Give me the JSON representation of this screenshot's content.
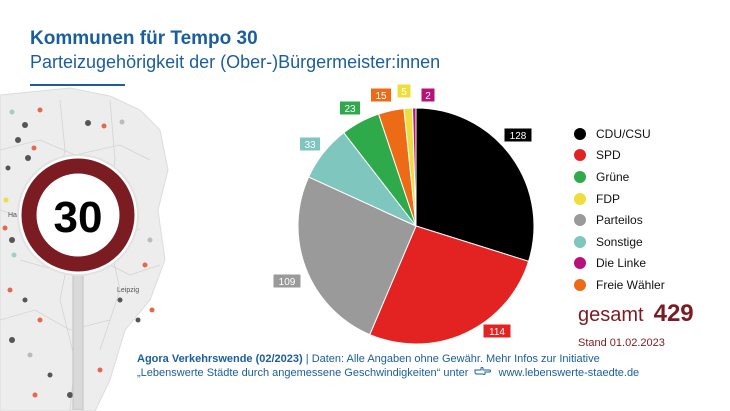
{
  "header": {
    "title": "Kommunen für Tempo 30",
    "subtitle": "Parteizugehörigkeit der (Ober-)Bürgermeister:innen"
  },
  "sign": {
    "number": "30"
  },
  "map": {
    "cities": [
      "Har",
      "Leipzig"
    ]
  },
  "colors": {
    "brand_blue": "#1a5e9e",
    "accent_dark_red": "#7b1c23",
    "sign_ring": "#7b1c23"
  },
  "chart_data": {
    "type": "pie",
    "title": "",
    "slices": [
      {
        "label": "CDU/CSU",
        "value": 128,
        "color": "#000000",
        "label_text": "#ffffff"
      },
      {
        "label": "SPD",
        "value": 114,
        "color": "#e32322",
        "label_text": "#ffffff"
      },
      {
        "label": "Parteilos",
        "value": 109,
        "color": "#9a9a9a",
        "label_text": "#ffffff"
      },
      {
        "label": "Sonstige",
        "value": 33,
        "color": "#7fc6bf",
        "label_text": "#ffffff"
      },
      {
        "label": "Grüne",
        "value": 23,
        "color": "#2eaa4a",
        "label_text": "#ffffff"
      },
      {
        "label": "Freie Wähler",
        "value": 15,
        "color": "#ed6a16",
        "label_text": "#ffffff"
      },
      {
        "label": "FDP",
        "value": 5,
        "color": "#eedd3b",
        "label_text": "#ffffff"
      },
      {
        "label": "Die Linke",
        "value": 2,
        "color": "#b7127a",
        "label_text": "#ffffff"
      }
    ],
    "legend": [
      {
        "label": "CDU/CSU",
        "color": "#000000"
      },
      {
        "label": "SPD",
        "color": "#e32322"
      },
      {
        "label": "Grüne",
        "color": "#2eaa4a"
      },
      {
        "label": "FDP",
        "color": "#eedd3b"
      },
      {
        "label": "Parteilos",
        "color": "#9a9a9a"
      },
      {
        "label": "Sonstige",
        "color": "#7fc6bf"
      },
      {
        "label": "Die Linke",
        "color": "#b7127a"
      },
      {
        "label": "Freie Wähler",
        "color": "#ed6a16"
      }
    ],
    "legend_position": "right"
  },
  "summary": {
    "total_label": "gesamt",
    "total_value": "429",
    "date": "Stand 01.02.2023"
  },
  "footer": {
    "source": "Agora Verkehrswende (02/2023)",
    "separator": "|",
    "line1_rest": "Daten: Alle Angaben ohne Gewähr. Mehr Infos zur Initiative",
    "line2_text": "„Lebenswerte Städte durch angemessene Geschwindigkeiten“ unter",
    "url": "www.lebenswerte-staedte.de"
  }
}
